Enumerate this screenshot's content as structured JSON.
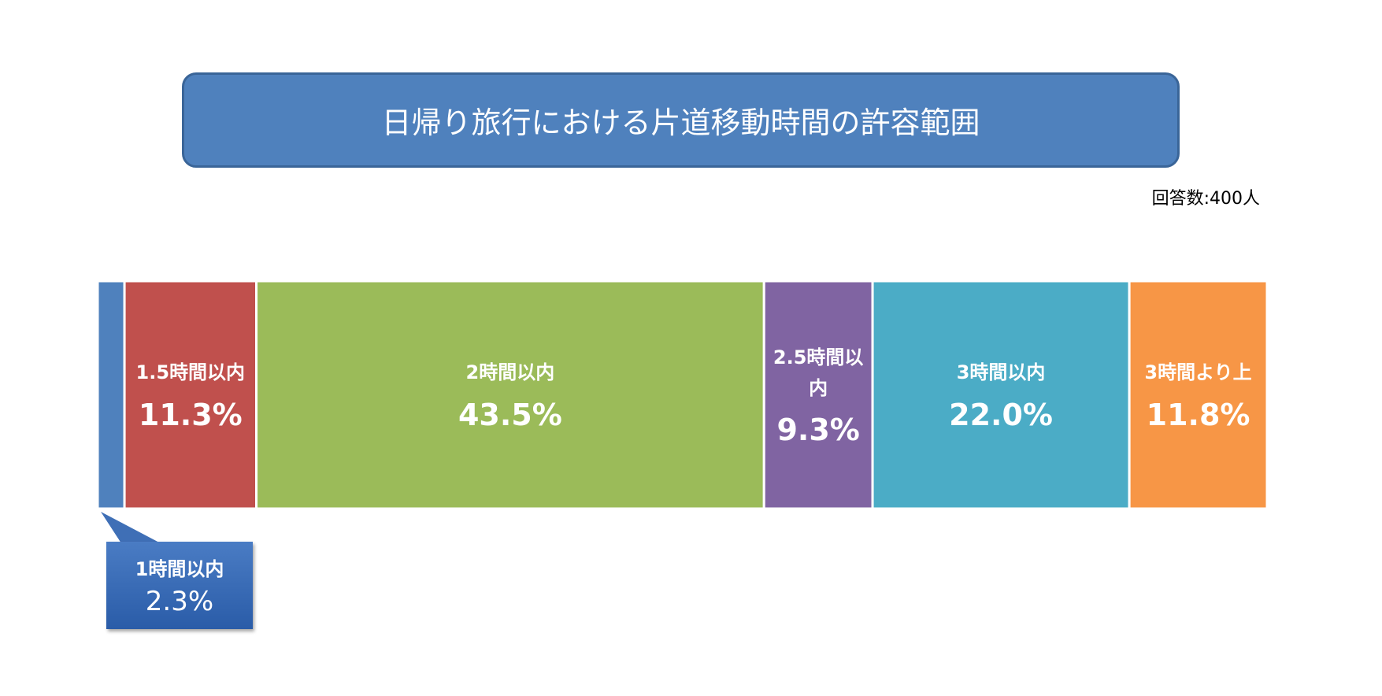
{
  "chart_data": {
    "type": "stacked-bar",
    "title": "日帰り旅行における片道移動時間の許容範囲",
    "subtitle": "回答数:400人",
    "series": [
      {
        "name": "1時間以内",
        "color": "#4f81bd",
        "values": [
          2.3
        ],
        "value_labels": [
          "2.3%"
        ]
      },
      {
        "name": "1.5時間以内",
        "color": "#c0504d",
        "values": [
          11.3
        ],
        "value_labels": [
          "11.3%"
        ]
      },
      {
        "name": "2時間以内",
        "color": "#9bbb59",
        "values": [
          43.5
        ],
        "value_labels": [
          "43.5%"
        ]
      },
      {
        "name": "2.5時間以内",
        "color": "#8064a2",
        "values": [
          9.3
        ],
        "value_labels": [
          "9.3%"
        ]
      },
      {
        "name": "3時間以内",
        "color": "#4bacc6",
        "values": [
          22.0
        ],
        "value_labels": [
          "22.0%"
        ]
      },
      {
        "name": "3時間より上",
        "color": "#f79646",
        "values": [
          11.8
        ],
        "value_labels": [
          "11.8%"
        ]
      }
    ]
  }
}
